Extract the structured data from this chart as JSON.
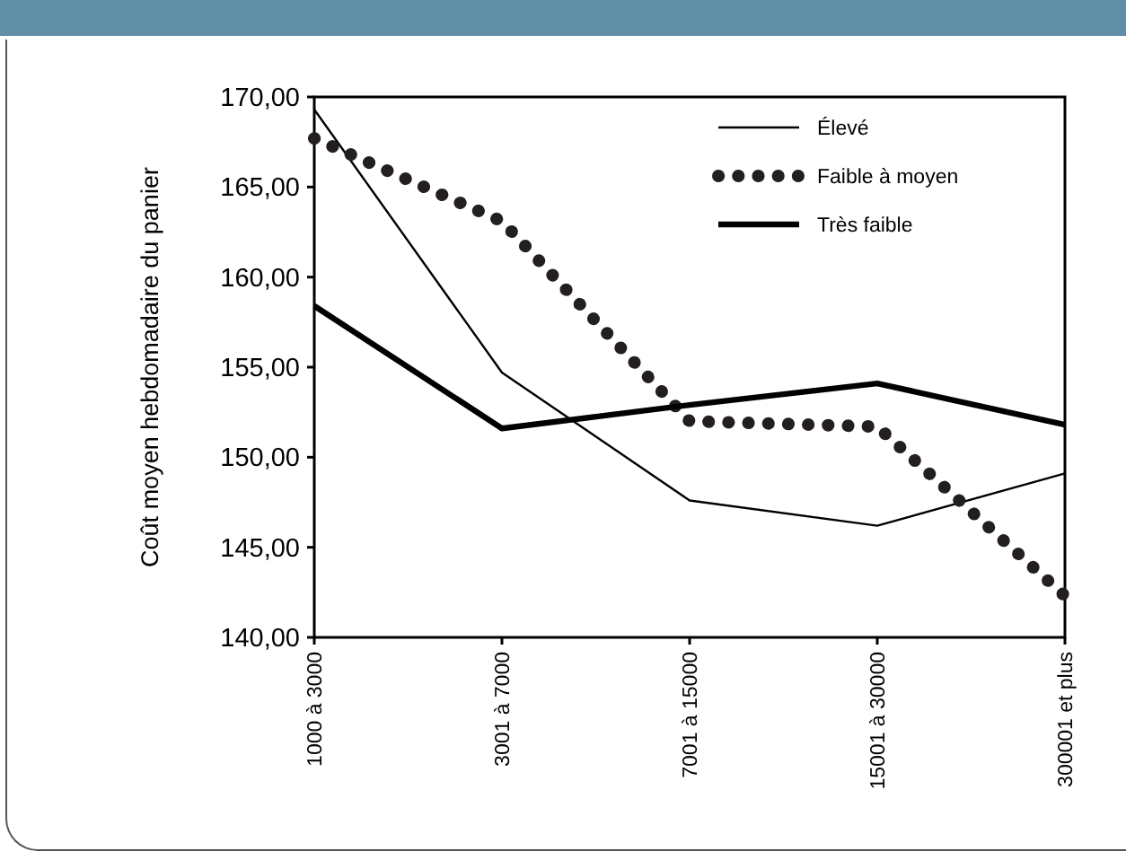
{
  "chart_data": {
    "type": "line",
    "ylabel": "Coût moyen hebdomadaire du panier",
    "categories": [
      "1000 à 3000",
      "3001 à 7000",
      "7001 à 15000",
      "15001 à 30000",
      "300001 et plus"
    ],
    "series": [
      {
        "name": "Élevé",
        "color": "#000000",
        "values": [
          169.3,
          154.7,
          147.6,
          146.2,
          149.1
        ],
        "line_style": "solid"
      },
      {
        "name": "Faible à moyen",
        "color": "#231f20",
        "values": [
          167.7,
          163.1,
          152.0,
          151.7,
          142.3
        ],
        "line_style": "dotted"
      },
      {
        "name": "Très faible",
        "color": "#000000",
        "values": [
          158.4,
          151.6,
          152.9,
          154.1,
          151.8
        ],
        "line_style": "solid"
      }
    ],
    "ylim": [
      140,
      170
    ],
    "yticks": [
      {
        "value": 140,
        "label": "140,00"
      },
      {
        "value": 145,
        "label": "145,00"
      },
      {
        "value": 150,
        "label": "150,00"
      },
      {
        "value": 155,
        "label": "155,00"
      },
      {
        "value": 160,
        "label": "160,00"
      },
      {
        "value": 165,
        "label": "165,00"
      },
      {
        "value": 170,
        "label": "170,00"
      }
    ],
    "grid": false,
    "legend": "top right",
    "marker": "none"
  }
}
